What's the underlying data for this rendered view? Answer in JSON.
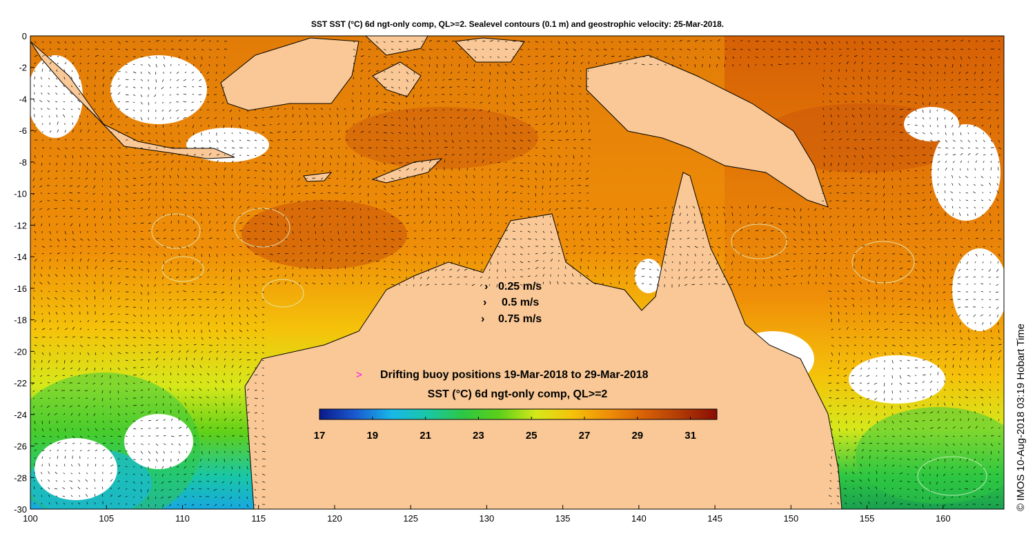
{
  "title": "SST SST (°C) 6d ngt-only comp, QL>=2. Sealevel contours (0.1 m) and geostrophic velocity: 25-Mar-2018.",
  "credit": "© IMOS 10-Aug-2018 03:19 Hobart Time",
  "velocity_legend": [
    "0.25 m/s",
    "0.5 m/s",
    "0.75 m/s"
  ],
  "buoy_legend": {
    "symbol": ">",
    "text": "Drifting buoy positions 19-Mar-2018 to 29-Mar-2018"
  },
  "colorbar": {
    "title": "SST (°C) 6d ngt-only comp, QL>=2",
    "min": 17,
    "max": 32,
    "ticks": [
      "17",
      "19",
      "21",
      "23",
      "25",
      "27",
      "29",
      "31"
    ]
  },
  "axes": {
    "lon_range": [
      100,
      164
    ],
    "lat_range": [
      -30,
      0
    ],
    "x_ticks": [
      "100",
      "105",
      "110",
      "115",
      "120",
      "125",
      "130",
      "135",
      "140",
      "145",
      "150",
      "155",
      "160"
    ],
    "y_ticks": [
      "0",
      "-2",
      "-4",
      "-6",
      "-8",
      "-10",
      "-12",
      "-14",
      "-16",
      "-18",
      "-20",
      "-22",
      "-24",
      "-26",
      "-28",
      "-30"
    ]
  },
  "colors": {
    "land": "#f9c896",
    "no_data": "#ffffff",
    "coastline_contour": "#30d0c0",
    "buoy": "#ff00ff",
    "sst_scale": [
      "#0a1a8a",
      "#1a5ad0",
      "#18b8e8",
      "#19c7a6",
      "#2ec742",
      "#5ed019",
      "#d6e81a",
      "#f5c20a",
      "#ef8e08",
      "#d66006",
      "#b03a06",
      "#8a0c04"
    ]
  }
}
